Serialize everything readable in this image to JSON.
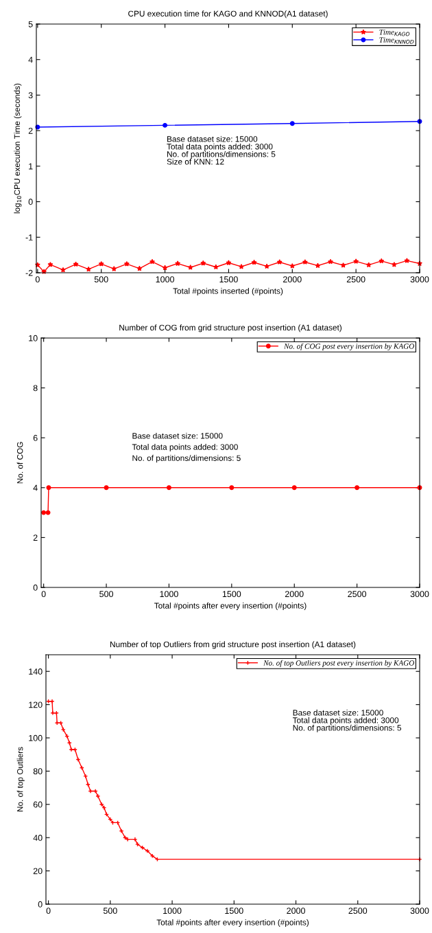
{
  "chart_data": [
    {
      "type": "line",
      "title": "CPU execution time for KAGO and KNNOD(A1 dataset)",
      "xlabel": "Total #points inserted (#points)",
      "ylabel": "log$_{10}$CPU execution Time (seconds)",
      "annotations": [
        "Base dataset size: 15000",
        "Total data points added: 3000",
        "No. of partitions/dimensions: 5",
        "Size of KNN: 12"
      ],
      "xlim": [
        -10,
        3000
      ],
      "xticks": [
        0,
        500,
        1000,
        1500,
        2000,
        2500,
        3000
      ],
      "ylim": [
        -2,
        5
      ],
      "yticks": [
        -2,
        -1,
        0,
        1,
        2,
        3,
        4,
        5
      ],
      "grid": false,
      "legend": "top right",
      "series": [
        {
          "name": "Time$_{KAGO}$",
          "color": "#ff0000",
          "marker": "star",
          "x": [
            0,
            50,
            100,
            200,
            300,
            400,
            500,
            600,
            700,
            800,
            900,
            1000,
            1100,
            1200,
            1300,
            1400,
            1500,
            1600,
            1700,
            1800,
            1900,
            2000,
            2100,
            2200,
            2300,
            2400,
            2500,
            2600,
            2700,
            2800,
            2900,
            3000
          ],
          "values": [
            -1.78,
            -1.97,
            -1.77,
            -1.92,
            -1.76,
            -1.9,
            -1.75,
            -1.89,
            -1.75,
            -1.88,
            -1.69,
            -1.86,
            -1.74,
            -1.85,
            -1.73,
            -1.84,
            -1.72,
            -1.83,
            -1.71,
            -1.82,
            -1.7,
            -1.81,
            -1.7,
            -1.8,
            -1.69,
            -1.79,
            -1.68,
            -1.78,
            -1.67,
            -1.77,
            -1.66,
            -1.74
          ]
        },
        {
          "name": "Time$_{KNNOD}$",
          "color": "#0000ff",
          "marker": "circle",
          "x": [
            0,
            1000,
            2000,
            3000
          ],
          "values": [
            2.1,
            2.15,
            2.2,
            2.26
          ]
        }
      ]
    },
    {
      "type": "line",
      "title": "Number of COG from grid structure post insertion (A1 dataset)",
      "xlabel": "Total #points after every insertion (#points)",
      "ylabel": "No. of COG",
      "annotations": [
        "Base dataset size: 15000",
        "Total data points added: 3000",
        "No. of partitions/dimensions: 5"
      ],
      "xlim": [
        -20,
        3000
      ],
      "xticks": [
        0,
        500,
        1000,
        1500,
        2000,
        2500,
        3000
      ],
      "ylim": [
        0,
        10
      ],
      "yticks": [
        0,
        2,
        4,
        6,
        8,
        10
      ],
      "grid": false,
      "legend": "top right",
      "series": [
        {
          "name": "No. of COG post every insertion by KAGO",
          "color": "#ff0000",
          "marker": "circle",
          "x": [
            0,
            35,
            40,
            500,
            1000,
            1500,
            2000,
            2500,
            3000
          ],
          "values": [
            3,
            3,
            4,
            4,
            4,
            4,
            4,
            4,
            4
          ]
        }
      ]
    },
    {
      "type": "line",
      "title": "Number of top Outliers from grid structure post insertion (A1 dataset)",
      "xlabel": "Total #points after every insertion (#points)",
      "ylabel": "No. of top Outliers",
      "annotations": [
        "Base dataset size: 15000",
        "Total data points added: 3000",
        "No. of partitions/dimensions: 5"
      ],
      "xlim": [
        -20,
        3000
      ],
      "xticks": [
        0,
        500,
        1000,
        1500,
        2000,
        2500,
        3000
      ],
      "ylim": [
        0,
        150
      ],
      "yticks": [
        0,
        20,
        40,
        60,
        80,
        100,
        120,
        140
      ],
      "grid": false,
      "legend": "top right",
      "series": [
        {
          "name": "No. of top Outliers post every insertion by KAGO",
          "color": "#ff0000",
          "marker": "cross",
          "x": [
            0,
            30,
            35,
            65,
            70,
            100,
            120,
            150,
            170,
            185,
            215,
            240,
            270,
            300,
            320,
            340,
            380,
            400,
            430,
            450,
            470,
            500,
            520,
            560,
            590,
            620,
            640,
            700,
            720,
            760,
            800,
            840,
            880,
            3000
          ],
          "values": [
            122,
            122,
            115,
            115,
            109,
            109,
            105,
            101,
            97,
            93,
            93,
            87,
            82,
            77,
            72,
            68,
            68,
            65,
            60,
            58,
            54,
            51,
            49,
            49,
            44,
            40,
            39,
            39,
            36,
            34,
            32,
            29,
            27,
            27
          ]
        }
      ]
    }
  ]
}
